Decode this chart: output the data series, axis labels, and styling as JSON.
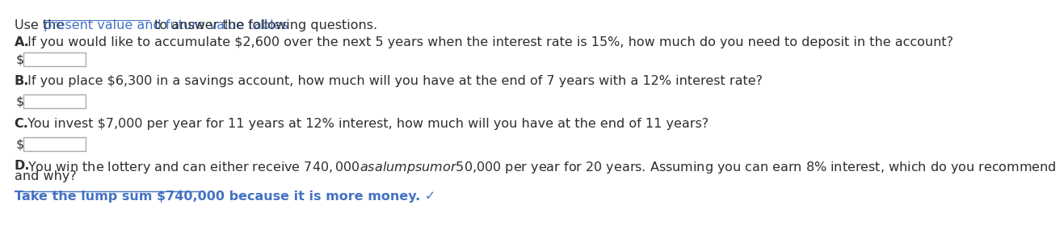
{
  "bg_color": "#ffffff",
  "line1_prefix": "Use the ",
  "line1_link": "present value and future value tables",
  "line1_suffix": " to answer the following questions.",
  "qA_bold": "A.",
  "qA_text": " If you would like to accumulate $2,600 over the next 5 years when the interest rate is 15%, how much do you need to deposit in the account?",
  "qB_bold": "B.",
  "qB_text": " If you place $6,300 in a savings account, how much will you have at the end of 7 years with a 12% interest rate?",
  "qC_bold": "C.",
  "qC_text": " You invest $7,000 per year for 11 years at 12% interest, how much will you have at the end of 11 years?",
  "qD_bold": "D.",
  "qD_text": " You win the lottery and can either receive $740,000 as a lump sum or $50,000 per year for 20 years. Assuming you can earn 8% interest, which do you recommend",
  "qD_text2": "and why?",
  "answer_text": "Take the lump sum $740,000 because it is more money.",
  "answer_check": " ✓",
  "link_color": "#4472C4",
  "answer_color": "#4472C4",
  "text_color": "#2E2E2E",
  "box_border_color": "#AAAAAA",
  "dollar_sign": "$",
  "font_size": 11.5
}
